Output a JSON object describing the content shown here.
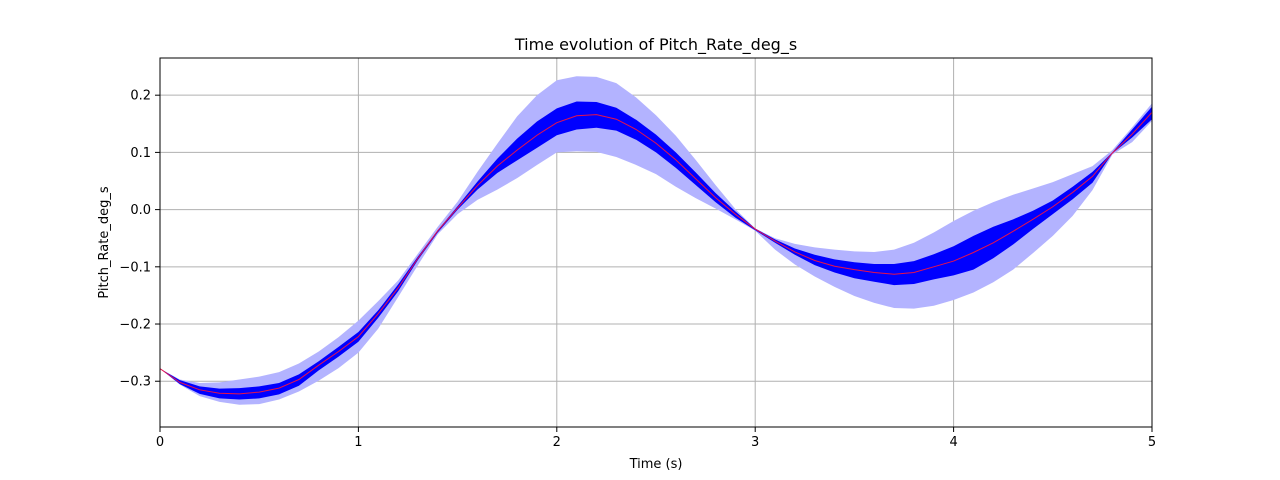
{
  "chart_data": {
    "type": "line",
    "title": "Time evolution of Pitch_Rate_deg_s",
    "xlabel": "Time (s)",
    "ylabel": "Pitch_Rate_deg_s",
    "xlim": [
      0,
      5
    ],
    "ylim": [
      -0.38,
      0.265
    ],
    "xticks": [
      0,
      1,
      2,
      3,
      4,
      5
    ],
    "xtick_labels": [
      "0",
      "1",
      "2",
      "3",
      "4",
      "5"
    ],
    "yticks": [
      -0.3,
      -0.2,
      -0.1,
      0.0,
      0.1,
      0.2
    ],
    "ytick_labels": [
      "−0.3",
      "−0.2",
      "−0.1",
      "0.0",
      "0.1",
      "0.2"
    ],
    "grid": true,
    "colors": {
      "mean_line": "#e8124a",
      "inner_band": "#0000ff",
      "outer_band": "#b3b3ff",
      "grid": "#b0b0b0",
      "frame": "#000000"
    },
    "x": [
      0,
      0.1,
      0.2,
      0.3,
      0.4,
      0.5,
      0.6,
      0.7,
      0.8,
      0.9,
      1.0,
      1.1,
      1.2,
      1.3,
      1.4,
      1.5,
      1.6,
      1.7,
      1.8,
      1.9,
      2.0,
      2.1,
      2.2,
      2.3,
      2.4,
      2.5,
      2.6,
      2.7,
      2.8,
      2.9,
      3.0,
      3.1,
      3.2,
      3.3,
      3.4,
      3.5,
      3.6,
      3.7,
      3.8,
      3.9,
      4.0,
      4.1,
      4.2,
      4.3,
      4.4,
      4.5,
      4.6,
      4.7,
      4.8,
      4.9,
      5.0
    ],
    "series": [
      {
        "role": "mean",
        "values": [
          -0.278,
          -0.302,
          -0.315,
          -0.321,
          -0.322,
          -0.319,
          -0.312,
          -0.297,
          -0.272,
          -0.248,
          -0.222,
          -0.182,
          -0.137,
          -0.085,
          -0.037,
          0.003,
          0.042,
          0.076,
          0.104,
          0.13,
          0.152,
          0.164,
          0.166,
          0.158,
          0.14,
          0.116,
          0.087,
          0.054,
          0.021,
          -0.008,
          -0.034,
          -0.055,
          -0.074,
          -0.089,
          -0.099,
          -0.105,
          -0.11,
          -0.113,
          -0.11,
          -0.1,
          -0.09,
          -0.075,
          -0.058,
          -0.038,
          -0.017,
          0.005,
          0.03,
          0.058,
          0.099,
          0.132,
          0.17
        ]
      },
      {
        "role": "inner_band_upper",
        "values": [
          -0.278,
          -0.298,
          -0.309,
          -0.313,
          -0.312,
          -0.309,
          -0.303,
          -0.288,
          -0.265,
          -0.24,
          -0.214,
          -0.176,
          -0.131,
          -0.082,
          -0.036,
          0.006,
          0.049,
          0.089,
          0.124,
          0.154,
          0.177,
          0.189,
          0.188,
          0.178,
          0.157,
          0.131,
          0.1,
          0.065,
          0.029,
          -0.003,
          -0.033,
          -0.052,
          -0.068,
          -0.079,
          -0.087,
          -0.092,
          -0.095,
          -0.095,
          -0.09,
          -0.078,
          -0.064,
          -0.046,
          -0.03,
          -0.017,
          -0.002,
          0.016,
          0.04,
          0.066,
          0.1,
          0.14,
          0.18
        ]
      },
      {
        "role": "inner_band_lower",
        "values": [
          -0.278,
          -0.305,
          -0.322,
          -0.33,
          -0.332,
          -0.33,
          -0.323,
          -0.308,
          -0.281,
          -0.257,
          -0.231,
          -0.189,
          -0.143,
          -0.088,
          -0.04,
          0.0,
          0.035,
          0.064,
          0.086,
          0.108,
          0.13,
          0.14,
          0.143,
          0.138,
          0.122,
          0.1,
          0.073,
          0.043,
          0.013,
          -0.014,
          -0.036,
          -0.058,
          -0.079,
          -0.097,
          -0.11,
          -0.12,
          -0.126,
          -0.132,
          -0.13,
          -0.122,
          -0.115,
          -0.105,
          -0.085,
          -0.061,
          -0.034,
          -0.008,
          0.018,
          0.047,
          0.098,
          0.126,
          0.158
        ]
      },
      {
        "role": "outer_band_upper",
        "values": [
          -0.278,
          -0.297,
          -0.303,
          -0.302,
          -0.297,
          -0.292,
          -0.284,
          -0.269,
          -0.248,
          -0.223,
          -0.194,
          -0.16,
          -0.124,
          -0.077,
          -0.03,
          0.014,
          0.066,
          0.115,
          0.163,
          0.2,
          0.226,
          0.233,
          0.232,
          0.221,
          0.196,
          0.165,
          0.129,
          0.087,
          0.043,
          0.001,
          -0.033,
          -0.05,
          -0.06,
          -0.066,
          -0.07,
          -0.073,
          -0.074,
          -0.07,
          -0.058,
          -0.04,
          -0.02,
          -0.002,
          0.013,
          0.026,
          0.037,
          0.048,
          0.062,
          0.076,
          0.104,
          0.144,
          0.186
        ]
      },
      {
        "role": "outer_band_lower",
        "values": [
          -0.278,
          -0.306,
          -0.326,
          -0.336,
          -0.341,
          -0.34,
          -0.332,
          -0.318,
          -0.299,
          -0.277,
          -0.25,
          -0.208,
          -0.153,
          -0.097,
          -0.043,
          -0.008,
          0.017,
          0.035,
          0.055,
          0.078,
          0.1,
          0.102,
          0.101,
          0.092,
          0.078,
          0.062,
          0.04,
          0.02,
          0.002,
          -0.017,
          -0.037,
          -0.07,
          -0.096,
          -0.117,
          -0.135,
          -0.151,
          -0.163,
          -0.172,
          -0.173,
          -0.168,
          -0.158,
          -0.145,
          -0.127,
          -0.105,
          -0.076,
          -0.046,
          -0.011,
          0.034,
          0.096,
          0.118,
          0.155
        ]
      }
    ]
  }
}
